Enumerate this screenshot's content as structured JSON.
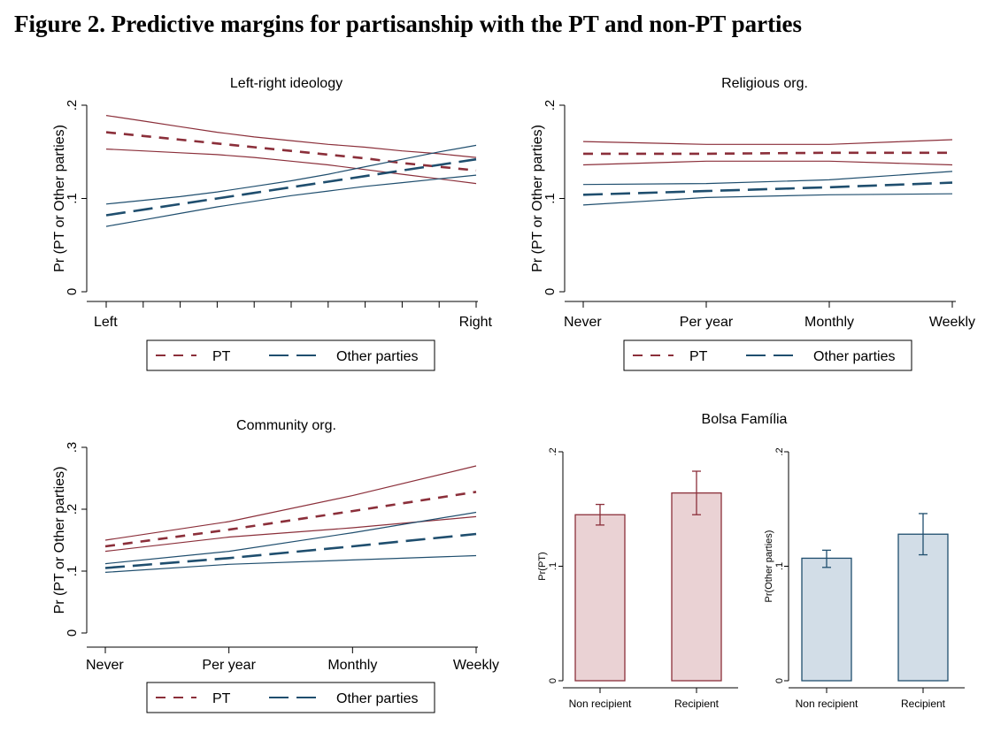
{
  "figure_title": "Figure 2. Predictive margins for partisanship with the PT and non-PT parties",
  "colors": {
    "pt": "#8b2f3a",
    "other": "#1f4e6e",
    "pt_fill": "#ead2d4",
    "other_fill": "#d2dde7"
  },
  "chart_data": [
    {
      "type": "line",
      "title": "Left-right ideology",
      "ylabel": "Pr (PT or Other parties)",
      "xlabel": "",
      "x_tick_labels": [
        "Left",
        "Right"
      ],
      "x": [
        1,
        2,
        3,
        4,
        5,
        6,
        7,
        8,
        9,
        10,
        11
      ],
      "x_minor_ticks": [
        1,
        2,
        3,
        4,
        5,
        6,
        7,
        8,
        9,
        10,
        11
      ],
      "xlim": [
        1,
        11
      ],
      "ylim": [
        0,
        0.2
      ],
      "y_ticks": [
        0,
        0.1,
        0.2
      ],
      "y_tick_labels": [
        "0",
        ".1",
        ".2"
      ],
      "legend": [
        "PT",
        "Other parties"
      ],
      "legend_position": "bottom",
      "series": [
        {
          "name": "PT",
          "color_key": "pt",
          "style": "dash",
          "mean": [
            0.171,
            0.167,
            0.163,
            0.159,
            0.155,
            0.151,
            0.147,
            0.143,
            0.138,
            0.134,
            0.13
          ],
          "lower": [
            0.153,
            0.151,
            0.149,
            0.147,
            0.144,
            0.14,
            0.136,
            0.131,
            0.126,
            0.121,
            0.116
          ],
          "upper": [
            0.189,
            0.183,
            0.177,
            0.171,
            0.166,
            0.162,
            0.158,
            0.155,
            0.151,
            0.148,
            0.144
          ]
        },
        {
          "name": "Other parties",
          "color_key": "other",
          "style": "longdash",
          "mean": [
            0.082,
            0.088,
            0.094,
            0.1,
            0.106,
            0.112,
            0.118,
            0.124,
            0.13,
            0.136,
            0.142
          ],
          "lower": [
            0.07,
            0.077,
            0.084,
            0.091,
            0.097,
            0.103,
            0.108,
            0.113,
            0.117,
            0.121,
            0.125
          ],
          "upper": [
            0.094,
            0.098,
            0.102,
            0.107,
            0.113,
            0.119,
            0.126,
            0.134,
            0.142,
            0.15,
            0.157
          ]
        }
      ]
    },
    {
      "type": "line",
      "title": "Religious org.",
      "ylabel": "Pr (PT or Other parties)",
      "xlabel": "",
      "categories": [
        "Never",
        "Per year",
        "Monthly",
        "Weekly"
      ],
      "ylim": [
        0,
        0.2
      ],
      "y_ticks": [
        0,
        0.1,
        0.2
      ],
      "y_tick_labels": [
        "0",
        ".1",
        ".2"
      ],
      "legend": [
        "PT",
        "Other parties"
      ],
      "legend_position": "bottom",
      "series": [
        {
          "name": "PT",
          "color_key": "pt",
          "style": "dash",
          "mean": [
            0.148,
            0.148,
            0.149,
            0.149
          ],
          "lower": [
            0.136,
            0.14,
            0.14,
            0.136
          ],
          "upper": [
            0.161,
            0.158,
            0.158,
            0.163
          ]
        },
        {
          "name": "Other parties",
          "color_key": "other",
          "style": "longdash",
          "mean": [
            0.104,
            0.108,
            0.112,
            0.117
          ],
          "lower": [
            0.093,
            0.101,
            0.104,
            0.105
          ],
          "upper": [
            0.115,
            0.116,
            0.12,
            0.129
          ]
        }
      ]
    },
    {
      "type": "line",
      "title": "Community org.",
      "ylabel": "Pr (PT or Other parties)",
      "xlabel": "",
      "categories": [
        "Never",
        "Per year",
        "Monthly",
        "Weekly"
      ],
      "ylim": [
        0,
        0.3
      ],
      "y_ticks": [
        0,
        0.1,
        0.2,
        0.3
      ],
      "y_tick_labels": [
        "0",
        ".1",
        ".2",
        ".3"
      ],
      "legend": [
        "PT",
        "Other parties"
      ],
      "legend_position": "bottom",
      "series": [
        {
          "name": "PT",
          "color_key": "pt",
          "style": "dash",
          "mean": [
            0.14,
            0.167,
            0.197,
            0.228
          ],
          "lower": [
            0.132,
            0.155,
            0.17,
            0.188
          ],
          "upper": [
            0.15,
            0.18,
            0.222,
            0.27
          ]
        },
        {
          "name": "Other parties",
          "color_key": "other",
          "style": "longdash",
          "mean": [
            0.105,
            0.121,
            0.14,
            0.16
          ],
          "lower": [
            0.098,
            0.111,
            0.118,
            0.125
          ],
          "upper": [
            0.112,
            0.132,
            0.162,
            0.195
          ]
        }
      ]
    },
    {
      "type": "bar",
      "title": "Bolsa Família",
      "ylabel": "Pr(PT)",
      "categories": [
        "Non recipient",
        "Recipient"
      ],
      "values": [
        0.145,
        0.164
      ],
      "lower": [
        0.136,
        0.145
      ],
      "upper": [
        0.154,
        0.183
      ],
      "ylim": [
        0,
        0.2
      ],
      "y_ticks": [
        0,
        0.1,
        0.2
      ],
      "y_tick_labels": [
        "0",
        ".1",
        ".2"
      ],
      "color_key": "pt"
    },
    {
      "type": "bar",
      "title": "",
      "ylabel": "Pr(Other parties)",
      "categories": [
        "Non recipient",
        "Recipient"
      ],
      "values": [
        0.107,
        0.128
      ],
      "lower": [
        0.099,
        0.11
      ],
      "upper": [
        0.114,
        0.146
      ],
      "ylim": [
        0,
        0.2
      ],
      "y_ticks": [
        0,
        0.1,
        0.2
      ],
      "y_tick_labels": [
        "0",
        ".1",
        ".2"
      ],
      "color_key": "other"
    }
  ]
}
